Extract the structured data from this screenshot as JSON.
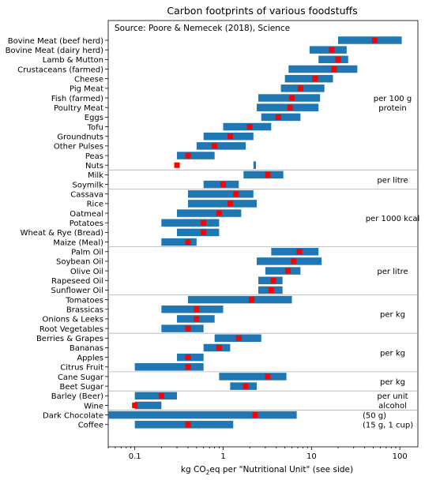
{
  "chart_data": {
    "type": "range-bar",
    "title": "Carbon footprints of various foodstuffs",
    "source": "Source: Poore & Nemecek (2018), Science",
    "xlabel_pre": "kg CO",
    "xlabel_sub": "2",
    "xlabel_post": "eq per \"Nutritional Unit\" (see side)",
    "xscale": "log",
    "xlim": [
      0.05,
      160
    ],
    "x_ticks": [
      {
        "value": 0.1,
        "label": "0.1"
      },
      {
        "value": 1,
        "label": "1"
      },
      {
        "value": 10,
        "label": "10"
      },
      {
        "value": 100,
        "label": "100"
      }
    ],
    "bar_color": "#1f77b4",
    "marker_color": "#ff0000",
    "separator_color": "#b0b0b0",
    "items": [
      {
        "name": "Bovine Meat (beef herd)",
        "low": 20,
        "high": 105,
        "median": 52
      },
      {
        "name": "Bovine Meat (dairy herd)",
        "low": 9.5,
        "high": 25,
        "median": 17
      },
      {
        "name": "Lamb & Mutton",
        "low": 12,
        "high": 26,
        "median": 20
      },
      {
        "name": "Crustaceans (farmed)",
        "low": 5.5,
        "high": 33,
        "median": 18
      },
      {
        "name": "Cheese",
        "low": 5,
        "high": 17.5,
        "median": 11
      },
      {
        "name": "Pig Meat",
        "low": 4.5,
        "high": 14,
        "median": 7.5
      },
      {
        "name": "Fish (farmed)",
        "low": 2.5,
        "high": 12.5,
        "median": 6
      },
      {
        "name": "Poultry Meat",
        "low": 2.4,
        "high": 12,
        "median": 5.7
      },
      {
        "name": "Eggs",
        "low": 2.7,
        "high": 7.5,
        "median": 4.2
      },
      {
        "name": "Tofu",
        "low": 1,
        "high": 3.5,
        "median": 2
      },
      {
        "name": "Groundnuts",
        "low": 0.6,
        "high": 2.2,
        "median": 1.2
      },
      {
        "name": "Other Pulses",
        "low": 0.5,
        "high": 1.8,
        "median": 0.8
      },
      {
        "name": "Peas",
        "low": 0.3,
        "high": 0.8,
        "median": 0.4
      },
      {
        "name": "Nuts",
        "low": 2.2,
        "high": 2.35,
        "median": 0.3
      },
      {
        "name": "Milk",
        "low": 1.7,
        "high": 4.8,
        "median": 3.2
      },
      {
        "name": "Soymilk",
        "low": 0.6,
        "high": 1.5,
        "median": 1
      },
      {
        "name": "Cassava",
        "low": 0.4,
        "high": 2.2,
        "median": 1.4
      },
      {
        "name": "Rice",
        "low": 0.4,
        "high": 2.4,
        "median": 1.2
      },
      {
        "name": "Oatmeal",
        "low": 0.3,
        "high": 1.6,
        "median": 0.9
      },
      {
        "name": "Potatoes",
        "low": 0.2,
        "high": 0.9,
        "median": 0.6
      },
      {
        "name": "Wheat & Rye (Bread)",
        "low": 0.3,
        "high": 0.9,
        "median": 0.6
      },
      {
        "name": "Maize (Meal)",
        "low": 0.2,
        "high": 0.5,
        "median": 0.4
      },
      {
        "name": "Palm Oil",
        "low": 3.5,
        "high": 12,
        "median": 7.3
      },
      {
        "name": "Soybean Oil",
        "low": 2.4,
        "high": 13,
        "median": 6.3
      },
      {
        "name": "Olive Oil",
        "low": 3,
        "high": 7.5,
        "median": 5.4
      },
      {
        "name": "Rapeseed Oil",
        "low": 2.5,
        "high": 4.7,
        "median": 3.7
      },
      {
        "name": "Sunflower Oil",
        "low": 2.5,
        "high": 4.7,
        "median": 3.5
      },
      {
        "name": "Tomatoes",
        "low": 0.4,
        "high": 6,
        "median": 2.1
      },
      {
        "name": "Brassicas",
        "low": 0.2,
        "high": 1,
        "median": 0.5
      },
      {
        "name": "Onions & Leeks",
        "low": 0.3,
        "high": 0.8,
        "median": 0.5
      },
      {
        "name": "Root Vegetables",
        "low": 0.2,
        "high": 0.6,
        "median": 0.4
      },
      {
        "name": "Berries & Grapes",
        "low": 0.8,
        "high": 2.7,
        "median": 1.5
      },
      {
        "name": "Bananas",
        "low": 0.6,
        "high": 1.2,
        "median": 0.9
      },
      {
        "name": "Apples",
        "low": 0.3,
        "high": 0.6,
        "median": 0.4
      },
      {
        "name": "Citrus Fruit",
        "low": 0.1,
        "high": 0.6,
        "median": 0.4
      },
      {
        "name": "Cane Sugar",
        "low": 0.9,
        "high": 5.2,
        "median": 3.2
      },
      {
        "name": "Beet Sugar",
        "low": 1.2,
        "high": 2.4,
        "median": 1.8
      },
      {
        "name": "Barley (Beer)",
        "low": 0.1,
        "high": 0.3,
        "median": 0.2
      },
      {
        "name": "Wine",
        "low": 0.1,
        "high": 0.2,
        "median": 0.1
      },
      {
        "name": "Dark Chocolate",
        "low": 0.05,
        "high": 6.8,
        "median": 2.3
      },
      {
        "name": "Coffee",
        "low": 0.1,
        "high": 1.3,
        "median": 0.4
      }
    ],
    "separators_after": [
      13,
      15,
      21,
      26,
      30,
      34,
      36,
      38
    ],
    "group_labels": [
      {
        "lines": [
          "per 100 g",
          "protein"
        ],
        "rows": [
          0,
          13
        ]
      },
      {
        "lines": [
          "per litre"
        ],
        "rows": [
          14,
          15
        ]
      },
      {
        "lines": [
          "per 1000 kcal"
        ],
        "rows": [
          16,
          21
        ]
      },
      {
        "lines": [
          "per litre"
        ],
        "rows": [
          22,
          26
        ]
      },
      {
        "lines": [
          "per kg"
        ],
        "rows": [
          27,
          30
        ]
      },
      {
        "lines": [
          "per kg"
        ],
        "rows": [
          31,
          34
        ]
      },
      {
        "lines": [
          "per kg"
        ],
        "rows": [
          35,
          36
        ]
      },
      {
        "lines": [
          "per unit",
          "alcohol"
        ],
        "rows": [
          37,
          38
        ]
      },
      {
        "lines": [
          "(50 g)",
          "(15 g, 1 cup)"
        ],
        "rows": [
          39,
          40
        ]
      }
    ]
  }
}
